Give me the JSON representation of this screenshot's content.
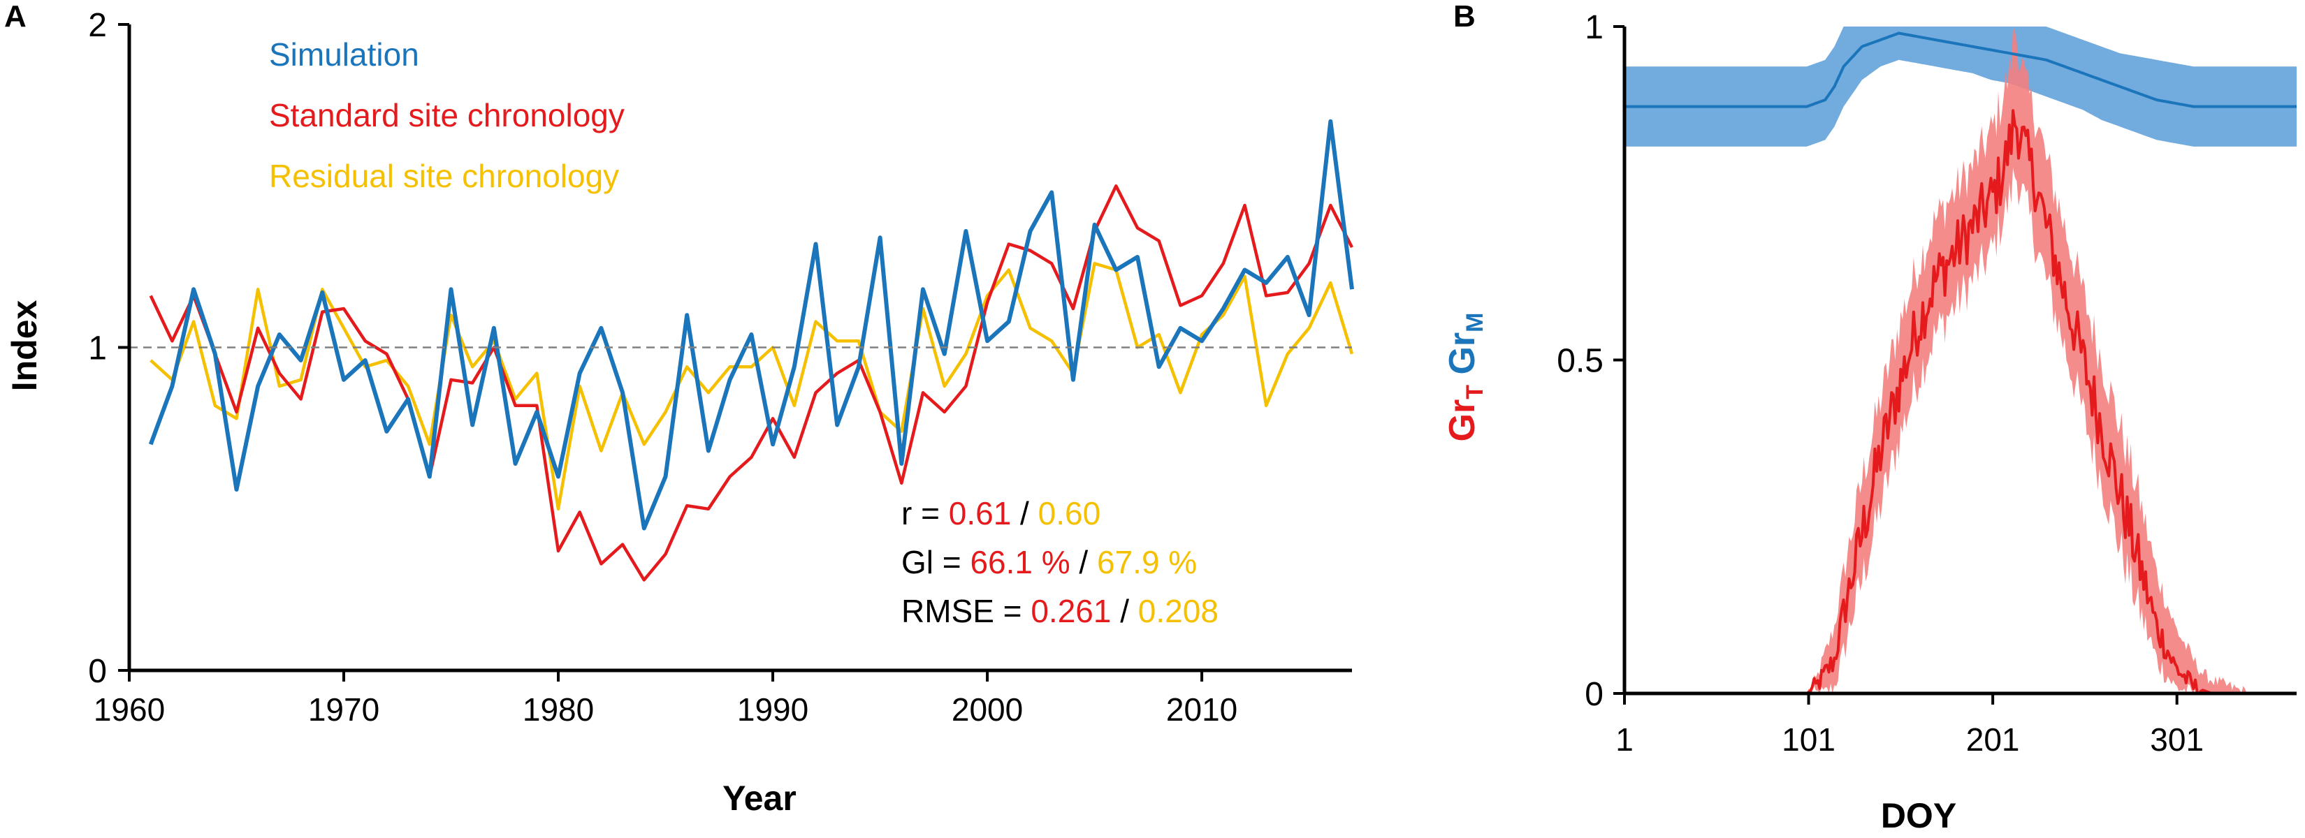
{
  "panels": {
    "a_label": "A",
    "b_label": "B"
  },
  "colors": {
    "simulation": "#1b75bb",
    "standard": "#e41a1c",
    "residual": "#f5c000",
    "black": "#000000",
    "grM_band": "#6aa6dc",
    "grT_band": "#f47f7f"
  },
  "chart_data": [
    {
      "type": "line",
      "panel": "A",
      "xlabel": "Year",
      "ylabel": "Index",
      "xlim": [
        1960,
        2017
      ],
      "ylim": [
        0,
        2
      ],
      "xticks": [
        1960,
        1970,
        1980,
        1990,
        2000,
        2010
      ],
      "yticks": [
        0,
        1,
        2
      ],
      "reference_line": 1,
      "x": [
        1961,
        1962,
        1963,
        1964,
        1965,
        1966,
        1967,
        1968,
        1969,
        1970,
        1971,
        1972,
        1973,
        1974,
        1975,
        1976,
        1977,
        1978,
        1979,
        1980,
        1981,
        1982,
        1983,
        1984,
        1985,
        1986,
        1987,
        1988,
        1989,
        1990,
        1991,
        1992,
        1993,
        1994,
        1995,
        1996,
        1997,
        1998,
        1999,
        2000,
        2001,
        2002,
        2003,
        2004,
        2005,
        2006,
        2007,
        2008,
        2009,
        2010,
        2011,
        2012,
        2013,
        2014,
        2015,
        2016,
        2017
      ],
      "series": [
        {
          "name": "Simulation",
          "color": "#1b75bb",
          "values": [
            0.7,
            0.88,
            1.18,
            0.98,
            0.56,
            0.88,
            1.04,
            0.96,
            1.17,
            0.9,
            0.96,
            0.74,
            0.84,
            0.6,
            1.18,
            0.76,
            1.06,
            0.64,
            0.8,
            0.6,
            0.92,
            1.06,
            0.86,
            0.44,
            0.6,
            1.1,
            0.68,
            0.9,
            1.04,
            0.7,
            0.94,
            1.32,
            0.76,
            0.94,
            1.34,
            0.64,
            1.18,
            0.98,
            1.36,
            1.02,
            1.08,
            1.36,
            1.48,
            0.9,
            1.38,
            1.24,
            1.28,
            0.94,
            1.06,
            1.02,
            1.12,
            1.24,
            1.2,
            1.28,
            1.1,
            1.7,
            1.18
          ]
        },
        {
          "name": "Standard site chronology",
          "color": "#e41a1c",
          "values": [
            1.16,
            1.02,
            1.16,
            0.98,
            0.8,
            1.06,
            0.92,
            0.84,
            1.11,
            1.12,
            1.02,
            0.98,
            0.84,
            0.6,
            0.9,
            0.89,
            1.0,
            0.82,
            0.82,
            0.37,
            0.49,
            0.33,
            0.39,
            0.28,
            0.36,
            0.51,
            0.5,
            0.6,
            0.66,
            0.78,
            0.66,
            0.86,
            0.92,
            0.96,
            0.8,
            0.58,
            0.86,
            0.8,
            0.88,
            1.14,
            1.32,
            1.3,
            1.26,
            1.12,
            1.36,
            1.5,
            1.37,
            1.33,
            1.13,
            1.16,
            1.26,
            1.44,
            1.16,
            1.17,
            1.26,
            1.44,
            1.31
          ]
        },
        {
          "name": "Residual site chronology",
          "color": "#f5c000",
          "values": [
            0.96,
            0.9,
            1.08,
            0.82,
            0.78,
            1.18,
            0.88,
            0.9,
            1.18,
            1.06,
            0.94,
            0.96,
            0.88,
            0.7,
            1.1,
            0.94,
            1.02,
            0.84,
            0.92,
            0.5,
            0.88,
            0.68,
            0.86,
            0.7,
            0.8,
            0.94,
            0.86,
            0.94,
            0.94,
            1.0,
            0.82,
            1.08,
            1.02,
            1.02,
            0.8,
            0.74,
            1.12,
            0.88,
            0.98,
            1.16,
            1.24,
            1.06,
            1.02,
            0.92,
            1.26,
            1.24,
            1.0,
            1.04,
            0.86,
            1.04,
            1.1,
            1.22,
            0.82,
            0.98,
            1.06,
            1.2,
            0.98
          ]
        }
      ],
      "annotations": [
        {
          "prefix": "r = ",
          "red_value": "0.61",
          "sep": " / ",
          "yellow_value": "0.60"
        },
        {
          "prefix": "Gl = ",
          "red_value": "66.1 %",
          "sep": " / ",
          "yellow_value": "67.9 %"
        },
        {
          "prefix": "RMSE = ",
          "red_value": "0.261",
          "sep": " / ",
          "yellow_value": "0.208"
        }
      ]
    },
    {
      "type": "area",
      "panel": "B",
      "xlabel": "DOY",
      "ylabel_parts": [
        "Gr",
        "T",
        " Gr",
        "M"
      ],
      "xlim": [
        1,
        366
      ],
      "ylim": [
        0,
        1
      ],
      "xticks": [
        1,
        101,
        201,
        301
      ],
      "yticks": [
        0,
        0.5,
        1
      ],
      "yticklabels": [
        "0",
        "0.5",
        "1"
      ],
      "series": [
        {
          "name": "GrM",
          "color": "#1b75bb",
          "band_color": "#6aa6dc",
          "x": [
            1,
            90,
            100,
            105,
            110,
            115,
            120,
            130,
            140,
            150,
            160,
            170,
            180,
            190,
            200,
            210,
            220,
            230,
            240,
            250,
            260,
            270,
            280,
            290,
            300,
            310,
            320,
            330,
            340,
            350,
            366
          ],
          "mean": [
            0.88,
            0.88,
            0.88,
            0.885,
            0.89,
            0.91,
            0.94,
            0.97,
            0.98,
            0.99,
            0.985,
            0.98,
            0.975,
            0.97,
            0.965,
            0.96,
            0.955,
            0.95,
            0.94,
            0.93,
            0.92,
            0.91,
            0.9,
            0.89,
            0.885,
            0.88,
            0.88,
            0.88,
            0.88,
            0.88,
            0.88
          ],
          "lower": [
            0.82,
            0.82,
            0.82,
            0.825,
            0.83,
            0.85,
            0.88,
            0.92,
            0.94,
            0.95,
            0.945,
            0.94,
            0.935,
            0.93,
            0.92,
            0.915,
            0.905,
            0.895,
            0.885,
            0.875,
            0.86,
            0.85,
            0.84,
            0.83,
            0.825,
            0.82,
            0.82,
            0.82,
            0.82,
            0.82,
            0.82
          ],
          "upper": [
            0.94,
            0.94,
            0.94,
            0.945,
            0.95,
            0.97,
            1.0,
            1.0,
            1.0,
            1.0,
            1.0,
            1.0,
            1.0,
            1.0,
            1.0,
            1.0,
            1.0,
            1.0,
            0.99,
            0.98,
            0.97,
            0.96,
            0.955,
            0.95,
            0.945,
            0.94,
            0.94,
            0.94,
            0.94,
            0.94,
            0.94
          ]
        },
        {
          "name": "GrT",
          "color": "#e41a1c",
          "band_color": "#f47f7f",
          "x": [
            1,
            90,
            100,
            105,
            110,
            115,
            120,
            125,
            130,
            140,
            150,
            160,
            170,
            180,
            190,
            200,
            205,
            210,
            213,
            216,
            220,
            225,
            230,
            240,
            250,
            260,
            270,
            280,
            290,
            300,
            310,
            315,
            320,
            330,
            340,
            350,
            366
          ],
          "mean": [
            0,
            0,
            0,
            0.01,
            0.03,
            0.05,
            0.12,
            0.18,
            0.24,
            0.36,
            0.46,
            0.55,
            0.62,
            0.66,
            0.7,
            0.74,
            0.77,
            0.82,
            0.86,
            0.84,
            0.8,
            0.76,
            0.7,
            0.6,
            0.5,
            0.4,
            0.3,
            0.2,
            0.1,
            0.04,
            0.01,
            0.005,
            0,
            0,
            0,
            0,
            0
          ],
          "lower": [
            0,
            0,
            0,
            0,
            0,
            0.01,
            0.06,
            0.12,
            0.17,
            0.28,
            0.38,
            0.47,
            0.54,
            0.58,
            0.62,
            0.66,
            0.7,
            0.74,
            0.78,
            0.76,
            0.72,
            0.67,
            0.62,
            0.52,
            0.42,
            0.32,
            0.22,
            0.13,
            0.05,
            0.01,
            0,
            0,
            0,
            0,
            0,
            0,
            0
          ],
          "upper": [
            0,
            0,
            0,
            0.02,
            0.06,
            0.1,
            0.18,
            0.25,
            0.32,
            0.44,
            0.55,
            0.64,
            0.71,
            0.75,
            0.79,
            0.84,
            0.88,
            0.93,
            1.0,
            0.95,
            0.9,
            0.86,
            0.8,
            0.7,
            0.6,
            0.5,
            0.4,
            0.3,
            0.18,
            0.1,
            0.05,
            0.03,
            0.02,
            0.01,
            0,
            0,
            0
          ]
        }
      ]
    }
  ]
}
